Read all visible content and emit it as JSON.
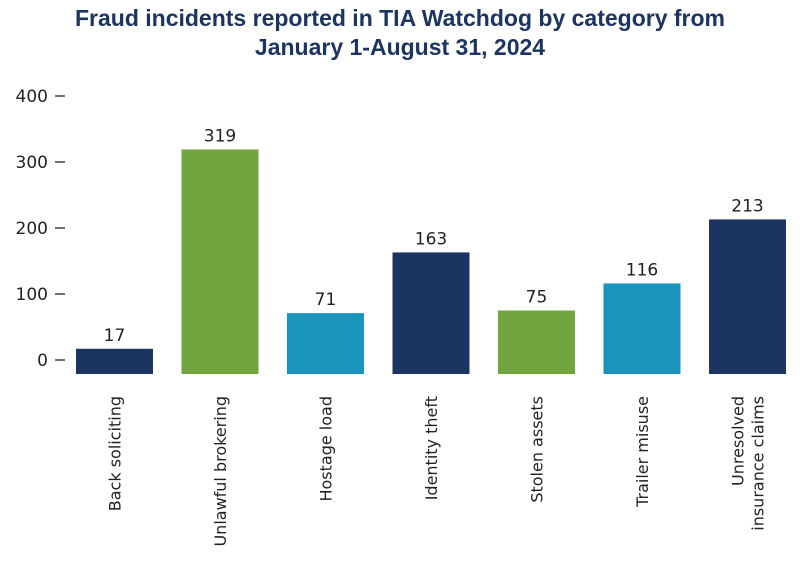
{
  "chart_data": {
    "type": "bar",
    "title_lines": [
      "Fraud incidents reported in TIA Watchdog by category from",
      "January 1-August 31, 2024"
    ],
    "categories": [
      [
        "Back soliciting"
      ],
      [
        "Unlawful brokering"
      ],
      [
        "Hostage load"
      ],
      [
        "Identity theft"
      ],
      [
        "Stolen assets"
      ],
      [
        "Trailer misuse"
      ],
      [
        "Unresolved",
        "insurance claims"
      ]
    ],
    "values": [
      17,
      319,
      71,
      163,
      75,
      116,
      213
    ],
    "bar_colors": [
      "#1c3461",
      "#72a540",
      "#1a94bd",
      "#1c3461",
      "#72a540",
      "#1a94bd",
      "#1c3461"
    ],
    "y_ticks": [
      0,
      100,
      200,
      300,
      400
    ],
    "ylim": [
      0,
      400
    ],
    "grid": false,
    "legend": "none"
  }
}
